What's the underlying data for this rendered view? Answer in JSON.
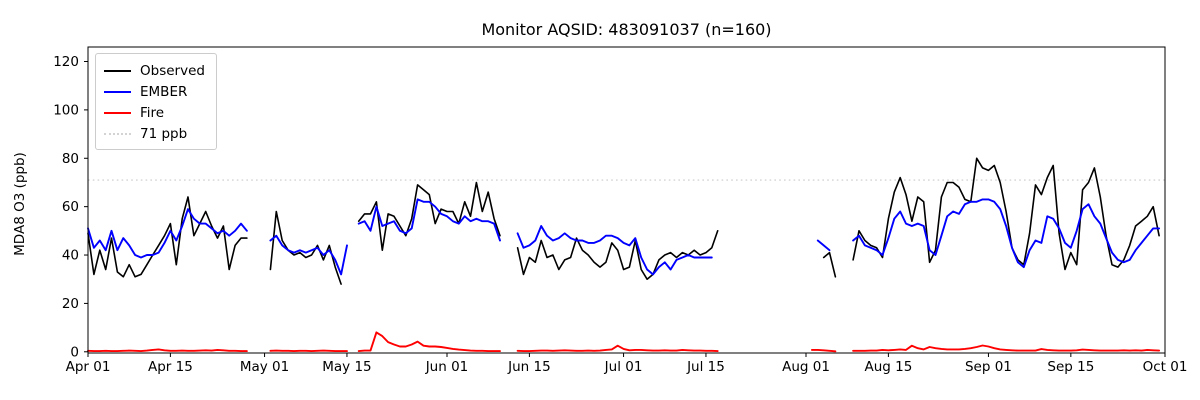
{
  "header": {
    "title": "Monitor AQSID: 483091037 (n=160)"
  },
  "chart_data": {
    "type": "line",
    "title": "Monitor AQSID: 483091037 (n=160)",
    "xlabel": "",
    "ylabel": "MDA8 O3 (ppb)",
    "n_label": 160,
    "grid": false,
    "legend_position": "upper left",
    "x_unit": "day index, 0 = Apr 01, daily cadence, nulls = missing days",
    "xlim": [
      0,
      183
    ],
    "ylim": [
      -0.5,
      126
    ],
    "y_ticks": [
      0,
      20,
      40,
      60,
      80,
      100,
      120
    ],
    "x_ticks": [
      {
        "label": "Apr 01",
        "day": 0
      },
      {
        "label": "Apr 15",
        "day": 14
      },
      {
        "label": "May 01",
        "day": 30
      },
      {
        "label": "May 15",
        "day": 44
      },
      {
        "label": "Jun 01",
        "day": 61
      },
      {
        "label": "Jun 15",
        "day": 75
      },
      {
        "label": "Jul 01",
        "day": 91
      },
      {
        "label": "Jul 15",
        "day": 105
      },
      {
        "label": "Aug 01",
        "day": 122
      },
      {
        "label": "Aug 15",
        "day": 136
      },
      {
        "label": "Sep 01",
        "day": 153
      },
      {
        "label": "Sep 15",
        "day": 167
      },
      {
        "label": "Oct 01",
        "day": 183
      }
    ],
    "threshold": {
      "label": "71 ppb",
      "value": 71,
      "color": "#d3d3d3",
      "style": "dotted"
    },
    "series": [
      {
        "name": "Observed",
        "color": "#000000",
        "values": [
          49,
          32,
          42,
          34,
          47,
          33,
          31,
          36,
          31,
          32,
          36,
          40,
          44,
          48,
          53,
          36,
          55,
          64,
          48,
          53,
          58,
          52,
          47,
          52,
          34,
          44,
          47,
          47,
          null,
          null,
          null,
          34,
          58,
          46,
          42,
          40,
          41,
          39,
          40,
          44,
          38,
          44,
          35,
          28,
          null,
          null,
          54,
          57,
          57,
          62,
          42,
          57,
          56,
          52,
          48,
          55,
          69,
          67,
          65,
          53,
          59,
          58,
          58,
          53,
          62,
          56,
          70,
          58,
          66,
          55,
          48,
          null,
          null,
          43,
          32,
          39,
          37,
          46,
          39,
          40,
          34,
          38,
          39,
          47,
          42,
          40,
          37,
          35,
          37,
          45,
          42,
          34,
          35,
          46,
          34,
          30,
          32,
          38,
          40,
          41,
          39,
          41,
          40,
          42,
          40,
          41,
          43,
          50,
          null,
          null,
          null,
          null,
          null,
          null,
          null,
          null,
          null,
          null,
          null,
          null,
          null,
          null,
          null,
          null,
          null,
          39,
          41,
          31,
          null,
          null,
          38,
          50,
          46,
          44,
          43,
          39,
          55,
          66,
          72,
          65,
          54,
          64,
          62,
          37,
          42,
          64,
          70,
          70,
          68,
          63,
          62,
          80,
          76,
          75,
          77,
          70,
          58,
          43,
          38,
          36,
          49,
          69,
          65,
          72,
          77,
          49,
          34,
          41,
          36,
          67,
          70,
          76,
          64,
          48,
          36,
          35,
          38,
          44,
          52,
          54,
          56,
          60,
          48
        ]
      },
      {
        "name": "EMBER",
        "color": "#0000ff",
        "values": [
          51,
          43,
          46,
          42,
          50,
          42,
          47,
          44,
          40,
          39,
          40,
          40,
          41,
          45,
          50,
          46,
          52,
          59,
          55,
          53,
          53,
          51,
          49,
          50,
          48,
          50,
          53,
          50,
          null,
          null,
          null,
          46,
          48,
          44,
          42,
          41,
          42,
          41,
          42,
          43,
          40,
          42,
          38,
          32,
          44,
          null,
          53,
          54,
          50,
          60,
          52,
          53,
          54,
          50,
          49,
          51,
          63,
          62,
          62,
          60,
          57,
          56,
          54,
          53,
          56,
          54,
          55,
          54,
          54,
          53,
          46,
          null,
          null,
          49,
          43,
          44,
          46,
          52,
          48,
          46,
          47,
          49,
          47,
          46,
          46,
          45,
          45,
          46,
          48,
          48,
          47,
          45,
          44,
          47,
          39,
          34,
          32,
          35,
          37,
          34,
          38,
          39,
          40,
          39,
          39,
          39,
          39,
          null,
          null,
          null,
          null,
          null,
          null,
          null,
          null,
          null,
          null,
          null,
          null,
          null,
          null,
          null,
          null,
          null,
          46,
          44,
          42,
          null,
          null,
          null,
          46,
          48,
          44,
          43,
          42,
          40,
          47,
          55,
          58,
          53,
          52,
          53,
          52,
          42,
          40,
          48,
          56,
          58,
          57,
          61,
          62,
          62,
          63,
          63,
          62,
          59,
          52,
          43,
          37,
          35,
          42,
          46,
          45,
          56,
          55,
          51,
          45,
          43,
          50,
          59,
          61,
          56,
          53,
          47,
          41,
          38,
          37,
          38,
          42,
          45,
          48,
          51,
          51
        ]
      },
      {
        "name": "Fire",
        "color": "#ff0000",
        "values": [
          0.4,
          0.3,
          0.3,
          0.4,
          0.3,
          0.3,
          0.4,
          0.5,
          0.4,
          0.3,
          0.5,
          0.8,
          1,
          0.6,
          0.4,
          0.4,
          0.5,
          0.4,
          0.4,
          0.5,
          0.6,
          0.5,
          0.8,
          0.6,
          0.4,
          0.4,
          0.3,
          0.3,
          null,
          null,
          null,
          0.4,
          0.5,
          0.4,
          0.4,
          0.3,
          0.4,
          0.4,
          0.3,
          0.4,
          0.5,
          0.4,
          0.3,
          0.3,
          0.3,
          null,
          0.3,
          0.5,
          0.5,
          8,
          6.5,
          4,
          3,
          2.2,
          2.2,
          3,
          4.2,
          2.5,
          2.2,
          2.2,
          2,
          1.6,
          1.2,
          0.9,
          0.7,
          0.5,
          0.4,
          0.4,
          0.3,
          0.3,
          0.3,
          null,
          null,
          0.4,
          0.3,
          0.3,
          0.4,
          0.5,
          0.5,
          0.4,
          0.5,
          0.6,
          0.5,
          0.4,
          0.4,
          0.5,
          0.4,
          0.5,
          0.8,
          1,
          2.5,
          1.2,
          0.6,
          0.8,
          0.8,
          0.6,
          0.5,
          0.5,
          0.6,
          0.5,
          0.5,
          0.8,
          0.6,
          0.5,
          0.5,
          0.4,
          0.4,
          0.3,
          null,
          null,
          null,
          null,
          null,
          null,
          null,
          null,
          null,
          null,
          null,
          null,
          null,
          null,
          null,
          0.8,
          0.8,
          0.6,
          0.4,
          0.2,
          null,
          null,
          0.4,
          0.4,
          0.4,
          0.5,
          0.5,
          0.8,
          0.6,
          0.8,
          1,
          0.8,
          2.5,
          1.5,
          1,
          2,
          1.5,
          1.2,
          1,
          1,
          1,
          1.2,
          1.5,
          2,
          2.6,
          2.2,
          1.5,
          1,
          0.8,
          0.6,
          0.5,
          0.5,
          0.5,
          0.5,
          1.1,
          0.8,
          0.6,
          0.5,
          0.5,
          0.5,
          0.6,
          0.9,
          0.8,
          0.6,
          0.5,
          0.5,
          0.5,
          0.5,
          0.6,
          0.5,
          0.6,
          0.5,
          0.8,
          0.6,
          0.5
        ]
      }
    ]
  }
}
